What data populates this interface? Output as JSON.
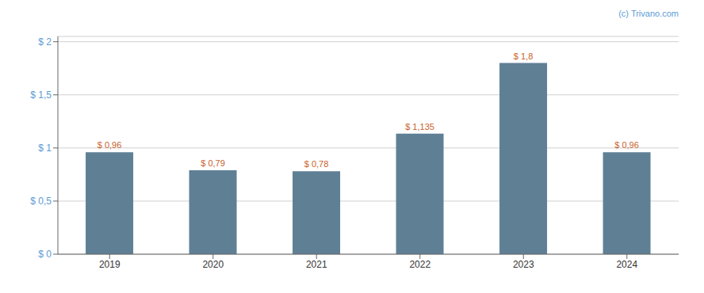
{
  "chart_data": {
    "type": "bar",
    "categories": [
      "2019",
      "2020",
      "2021",
      "2022",
      "2023",
      "2024"
    ],
    "values": [
      0.96,
      0.79,
      0.78,
      1.135,
      1.8,
      0.96
    ],
    "value_labels": [
      "$ 0,96",
      "$ 0,79",
      "$ 0,78",
      "$ 1,135",
      "$ 1,8",
      "$ 0,96"
    ],
    "color": "#5f7f95",
    "ylim": [
      0,
      2.05
    ],
    "yticks": [
      {
        "value": 0,
        "label": "$ 0"
      },
      {
        "value": 0.5,
        "label": "$ 0,5"
      },
      {
        "value": 1.0,
        "label": "$ 1"
      },
      {
        "value": 1.5,
        "label": "$ 1,5"
      },
      {
        "value": 2.0,
        "label": "$ 2"
      }
    ],
    "grid": true,
    "data_labels": true,
    "annotations": [
      "(c) Trivano.com"
    ]
  }
}
